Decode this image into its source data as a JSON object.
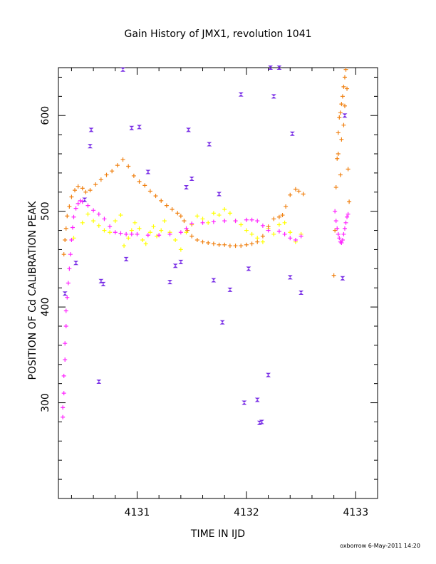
{
  "chart_data": {
    "type": "scatter",
    "title": "Gain History of JMX1, revolution 1041",
    "xlabel": "TIME IN IJD",
    "ylabel": "POSITION OF Cd CALIBRATION PEAK",
    "xlim": [
      4130.28,
      4133.2
    ],
    "ylim": [
      200,
      650
    ],
    "x_ticks": [
      "4131",
      "4132",
      "4133"
    ],
    "y_ticks": [
      "300",
      "400",
      "500",
      "600"
    ],
    "grid": false,
    "legend": "none",
    "colors": {
      "orange": "#f08010",
      "magenta": "#ff22ff",
      "yellow": "#ffff00",
      "purple": "#7a30e6"
    },
    "series": [
      {
        "values": [
          [
            4130.33,
            455
          ],
          [
            4130.34,
            470
          ],
          [
            4130.35,
            482
          ],
          [
            4130.36,
            495
          ],
          [
            4130.38,
            505
          ],
          [
            4130.4,
            515
          ],
          [
            4130.43,
            522
          ],
          [
            4130.46,
            526
          ],
          [
            4130.5,
            524
          ],
          [
            4130.53,
            520
          ],
          [
            4130.57,
            522
          ],
          [
            4130.62,
            528
          ],
          [
            4130.67,
            533
          ],
          [
            4130.72,
            538
          ],
          [
            4130.77,
            542
          ],
          [
            4130.82,
            548
          ],
          [
            4130.87,
            554
          ],
          [
            4130.92,
            547
          ],
          [
            4130.97,
            537
          ],
          [
            4131.02,
            531
          ],
          [
            4131.07,
            527
          ],
          [
            4131.12,
            521
          ],
          [
            4131.17,
            516
          ],
          [
            4131.22,
            511
          ],
          [
            4131.27,
            506
          ],
          [
            4131.32,
            502
          ],
          [
            4131.37,
            498
          ],
          [
            4131.4,
            495
          ],
          [
            4131.43,
            490
          ],
          [
            4131.46,
            480
          ],
          [
            4131.5,
            474
          ],
          [
            4131.55,
            470
          ],
          [
            4131.6,
            468
          ],
          [
            4131.65,
            467
          ],
          [
            4131.7,
            466
          ],
          [
            4131.75,
            465
          ],
          [
            4131.8,
            465
          ],
          [
            4131.85,
            464
          ],
          [
            4131.9,
            464
          ],
          [
            4131.95,
            464
          ],
          [
            4132.0,
            465
          ],
          [
            4132.05,
            466
          ],
          [
            4132.1,
            468
          ],
          [
            4132.15,
            474
          ],
          [
            4132.2,
            484
          ],
          [
            4132.25,
            492
          ],
          [
            4132.3,
            494
          ],
          [
            4132.33,
            496
          ],
          [
            4132.36,
            505
          ],
          [
            4132.4,
            517
          ],
          [
            4132.45,
            523
          ],
          [
            4132.48,
            521
          ],
          [
            4132.52,
            518
          ],
          [
            4132.8,
            433
          ],
          [
            4132.81,
            480
          ],
          [
            4132.82,
            525
          ],
          [
            4132.83,
            555
          ],
          [
            4132.84,
            582
          ],
          [
            4132.85,
            598
          ],
          [
            4132.86,
            603
          ],
          [
            4132.87,
            612
          ],
          [
            4132.88,
            620
          ],
          [
            4132.89,
            630
          ],
          [
            4132.9,
            640
          ],
          [
            4132.91,
            648
          ],
          [
            4132.84,
            560
          ],
          [
            4132.86,
            538
          ],
          [
            4132.87,
            575
          ],
          [
            4132.89,
            590
          ],
          [
            4132.9,
            610
          ],
          [
            4132.92,
            628
          ],
          [
            4132.93,
            544
          ],
          [
            4132.94,
            510
          ]
        ]
      },
      {
        "values": [
          [
            4130.32,
            285
          ],
          [
            4130.32,
            295
          ],
          [
            4130.33,
            310
          ],
          [
            4130.33,
            328
          ],
          [
            4130.34,
            345
          ],
          [
            4130.34,
            362
          ],
          [
            4130.35,
            380
          ],
          [
            4130.35,
            396
          ],
          [
            4130.36,
            410
          ],
          [
            4130.37,
            425
          ],
          [
            4130.38,
            440
          ],
          [
            4130.39,
            455
          ],
          [
            4130.4,
            470
          ],
          [
            4130.41,
            483
          ],
          [
            4130.42,
            494
          ],
          [
            4130.44,
            503
          ],
          [
            4130.46,
            508
          ],
          [
            4130.48,
            511
          ],
          [
            4130.5,
            510
          ],
          [
            4130.55,
            506
          ],
          [
            4130.6,
            501
          ],
          [
            4130.65,
            497
          ],
          [
            4130.7,
            492
          ],
          [
            4130.75,
            484
          ],
          [
            4130.8,
            478
          ],
          [
            4130.85,
            477
          ],
          [
            4130.9,
            476
          ],
          [
            4130.95,
            476
          ],
          [
            4131.0,
            476
          ],
          [
            4131.1,
            475
          ],
          [
            4131.2,
            475
          ],
          [
            4131.3,
            476
          ],
          [
            4131.4,
            478
          ],
          [
            4131.45,
            482
          ],
          [
            4131.5,
            487
          ],
          [
            4131.6,
            488
          ],
          [
            4131.7,
            489
          ],
          [
            4131.8,
            490
          ],
          [
            4131.9,
            490
          ],
          [
            4132.0,
            491
          ],
          [
            4132.05,
            491
          ],
          [
            4132.1,
            490
          ],
          [
            4132.15,
            485
          ],
          [
            4132.2,
            480
          ],
          [
            4132.3,
            479
          ],
          [
            4132.35,
            476
          ],
          [
            4132.4,
            472
          ],
          [
            4132.45,
            470
          ],
          [
            4132.5,
            474
          ],
          [
            4132.81,
            500
          ],
          [
            4132.82,
            490
          ],
          [
            4132.83,
            482
          ],
          [
            4132.84,
            476
          ],
          [
            4132.85,
            472
          ],
          [
            4132.86,
            468
          ],
          [
            4132.87,
            467
          ],
          [
            4132.88,
            470
          ],
          [
            4132.89,
            476
          ],
          [
            4132.9,
            482
          ],
          [
            4132.91,
            488
          ],
          [
            4132.92,
            494
          ],
          [
            4132.93,
            497
          ]
        ]
      },
      {
        "values": [
          [
            4130.42,
            472
          ],
          [
            4130.5,
            488
          ],
          [
            4130.55,
            497
          ],
          [
            4130.6,
            490
          ],
          [
            4130.65,
            485
          ],
          [
            4130.7,
            480
          ],
          [
            4130.75,
            478
          ],
          [
            4130.8,
            490
          ],
          [
            4130.85,
            496
          ],
          [
            4130.88,
            464
          ],
          [
            4130.92,
            472
          ],
          [
            4130.95,
            480
          ],
          [
            4130.98,
            488
          ],
          [
            4131.02,
            482
          ],
          [
            4131.05,
            470
          ],
          [
            4131.08,
            466
          ],
          [
            4131.12,
            478
          ],
          [
            4131.15,
            484
          ],
          [
            4131.18,
            474
          ],
          [
            4131.22,
            480
          ],
          [
            4131.25,
            490
          ],
          [
            4131.3,
            478
          ],
          [
            4131.35,
            470
          ],
          [
            4131.4,
            460
          ],
          [
            4131.45,
            478
          ],
          [
            4131.5,
            486
          ],
          [
            4131.55,
            495
          ],
          [
            4131.6,
            492
          ],
          [
            4131.65,
            488
          ],
          [
            4131.7,
            498
          ],
          [
            4131.75,
            496
          ],
          [
            4131.8,
            502
          ],
          [
            4131.85,
            498
          ],
          [
            4131.9,
            490
          ],
          [
            4131.95,
            486
          ],
          [
            4132.0,
            480
          ],
          [
            4132.05,
            476
          ],
          [
            4132.1,
            472
          ],
          [
            4132.15,
            468
          ],
          [
            4132.2,
            482
          ],
          [
            4132.25,
            476
          ],
          [
            4132.3,
            486
          ],
          [
            4132.35,
            488
          ],
          [
            4132.4,
            478
          ],
          [
            4132.45,
            468
          ],
          [
            4132.5,
            476
          ]
        ]
      },
      {
        "values": [
          [
            4130.34,
            414
          ],
          [
            4130.44,
            446
          ],
          [
            4130.52,
            512
          ],
          [
            4130.57,
            568
          ],
          [
            4130.58,
            585
          ],
          [
            4130.65,
            322
          ],
          [
            4130.67,
            427
          ],
          [
            4130.69,
            424
          ],
          [
            4130.87,
            648
          ],
          [
            4130.9,
            450
          ],
          [
            4130.95,
            587
          ],
          [
            4131.02,
            588
          ],
          [
            4131.1,
            541
          ],
          [
            4131.3,
            426
          ],
          [
            4131.35,
            443
          ],
          [
            4131.4,
            447
          ],
          [
            4131.45,
            525
          ],
          [
            4131.47,
            585
          ],
          [
            4131.5,
            534
          ],
          [
            4131.66,
            570
          ],
          [
            4131.7,
            428
          ],
          [
            4131.75,
            518
          ],
          [
            4131.78,
            384
          ],
          [
            4131.85,
            418
          ],
          [
            4131.95,
            622
          ],
          [
            4131.98,
            300
          ],
          [
            4132.02,
            440
          ],
          [
            4132.1,
            303
          ],
          [
            4132.12,
            279
          ],
          [
            4132.14,
            280
          ],
          [
            4132.2,
            329
          ],
          [
            4132.22,
            650
          ],
          [
            4132.25,
            620
          ],
          [
            4132.3,
            650
          ],
          [
            4132.4,
            431
          ],
          [
            4132.42,
            581
          ],
          [
            4132.5,
            415
          ],
          [
            4132.88,
            430
          ],
          [
            4132.9,
            600
          ]
        ]
      }
    ],
    "footer": "oxborrow  6-May-2011 14:20"
  }
}
